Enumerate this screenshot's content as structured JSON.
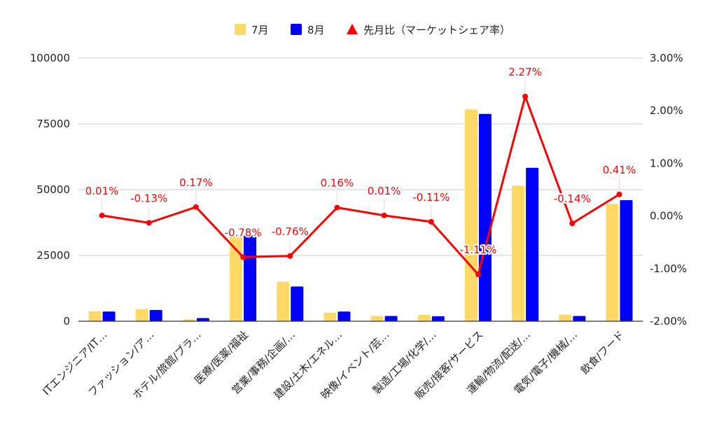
{
  "chart_data": {
    "type": "bar",
    "combo": "bar+line (dual axis)",
    "categories": [
      "ITエンジニア/IT…",
      "ファッション/ア…",
      "ホテル/旅館/ブラ…",
      "医療/医薬/福祉",
      "営業/事務/企画/…",
      "建設/土木/エネル…",
      "映像/イベント/芸…",
      "製造/工場/化学/…",
      "販売/接客/サービス",
      "運輸/物流/配送/…",
      "電気/電子/機械/…",
      "飲食/フード"
    ],
    "series": [
      {
        "name": "7月",
        "kind": "bar",
        "axis": "left",
        "color": "#FFD966",
        "values": [
          3800,
          4600,
          700,
          32500,
          15000,
          3300,
          2000,
          2400,
          80500,
          51500,
          2500,
          44500
        ]
      },
      {
        "name": "8月",
        "kind": "bar",
        "axis": "left",
        "color": "#0000FF",
        "values": [
          3700,
          4300,
          1200,
          32700,
          13200,
          3700,
          2000,
          1900,
          78800,
          58300,
          2000,
          46000
        ]
      },
      {
        "name": "先月比（マーケットシェア率）",
        "kind": "line",
        "axis": "right",
        "color": "#FF0000",
        "marker": "triangle",
        "values": [
          0.01,
          -0.13,
          0.17,
          -0.78,
          -0.76,
          0.16,
          0.01,
          -0.11,
          -1.11,
          2.27,
          -0.14,
          0.41
        ],
        "labels": [
          "0.01%",
          "-0.13%",
          "0.17%",
          "-0.78%",
          "-0.76%",
          "0.16%",
          "0.01%",
          "-0.11%",
          "-1.11%",
          "2.27%",
          "-0.14%",
          "0.41%"
        ]
      }
    ],
    "y_left": {
      "min": 0,
      "max": 100000,
      "ticks": [
        0,
        25000,
        50000,
        75000,
        100000
      ],
      "tick_labels": [
        "0",
        "25000",
        "50000",
        "75000",
        "100000"
      ]
    },
    "y_right": {
      "min": -2.0,
      "max": 3.0,
      "ticks": [
        -2,
        -1,
        0,
        1,
        2,
        3
      ],
      "tick_labels": [
        "-2.00%",
        "-1.00%",
        "0.00%",
        "1.00%",
        "2.00%",
        "3.00%"
      ]
    },
    "grid": true,
    "legend": "top-center",
    "title": "",
    "xlabel": "",
    "ylabel": ""
  }
}
